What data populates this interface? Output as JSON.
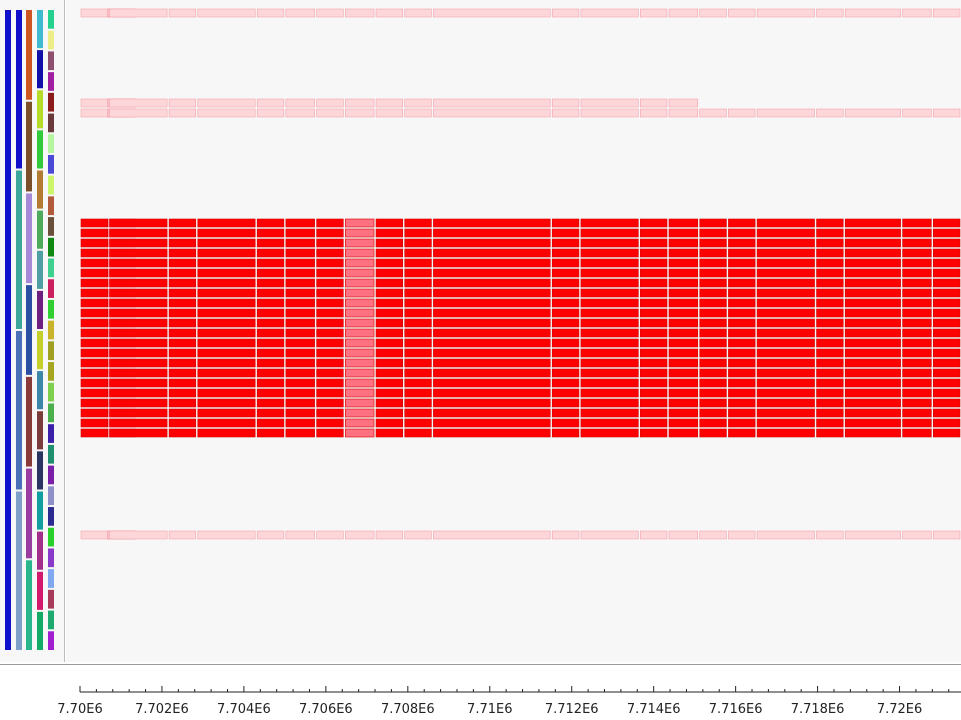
{
  "chart_data": {
    "type": "heatmap",
    "x_axis": {
      "range": [
        7700000,
        7721500
      ],
      "ticks": [
        7700000,
        7702000,
        7704000,
        7706000,
        7708000,
        7710000,
        7712000,
        7714000,
        7716000,
        7718000,
        7720000
      ],
      "tick_labels": [
        "7.70E6",
        "7.702E6",
        "7.704E6",
        "7.706E6",
        "7.708E6",
        "7.71E6",
        "7.712E6",
        "7.714E6",
        "7.716E6",
        "7.718E6",
        "7.72E6"
      ]
    },
    "bin_edges": [
      7700000,
      7700700,
      7702150,
      7702850,
      7704300,
      7705000,
      7705750,
      7706450,
      7707200,
      7707900,
      7708600,
      7711500,
      7712200,
      7713650,
      7714350,
      7715100,
      7715800,
      7716500,
      7717950,
      7718650,
      7720050,
      7720800,
      7721500
    ],
    "colors": {
      "strong": "#ff0000",
      "faint": "#fcd6d9",
      "mid": "#ff7080",
      "pale_border": "#f4a3ad"
    },
    "row_groups": [
      {
        "rows": 1,
        "level": "faint",
        "coverage_end": 7721500
      },
      {
        "rows": 1,
        "level": "faint",
        "coverage_end": 7715100
      },
      {
        "rows": 1,
        "level": "faint",
        "coverage_end": 7721500
      },
      {
        "rows": 22,
        "level": "strong",
        "coverage_end": 7721500
      },
      {
        "rows": 1,
        "level": "faint",
        "coverage_end": 7721500
      }
    ],
    "dendrogram_columns": [
      [
        "#1111cc"
      ],
      [
        "#1111cc",
        "#3ea79b",
        "#4a70b8",
        "#7fa1c9"
      ],
      [
        "#cc5522",
        "#7a4f2a",
        "#a68ad8",
        "#2b4fa3",
        "#8b3a3a",
        "#9b3da0",
        "#2bb58c"
      ],
      [
        "#3fb9cf",
        "#1111aa",
        "#b6db2b",
        "#32c93a",
        "#b37a34",
        "#4fa95b",
        "#4e9fa3",
        "#6f1f80",
        "#c4cf2b",
        "#3c86a8",
        "#7a3b3b",
        "#2b3561",
        "#119e9e",
        "#a12f8a",
        "#d11a6f",
        "#11aa66"
      ],
      [
        "#25d18f",
        "#eeee88",
        "#8f4f6f",
        "#a01fa0",
        "#8b1a1a",
        "#6a3a3a",
        "#b5f59f",
        "#4a4ad4",
        "#cdf56b",
        "#b35a3a",
        "#6a4f3a",
        "#118811",
        "#3fcf8f",
        "#cc1f5f",
        "#32cf32",
        "#c9b32b",
        "#9f9f22",
        "#a6a61f",
        "#7fcf4f",
        "#4aaf4a",
        "#3a1fa8",
        "#1f8f6f",
        "#7a1fa8",
        "#8f8fc9",
        "#2b2b8f",
        "#2bcf2b",
        "#8a3ac9",
        "#7fa8ef",
        "#a83a5a",
        "#1fa86f",
        "#9f1fcf"
      ]
    ]
  }
}
